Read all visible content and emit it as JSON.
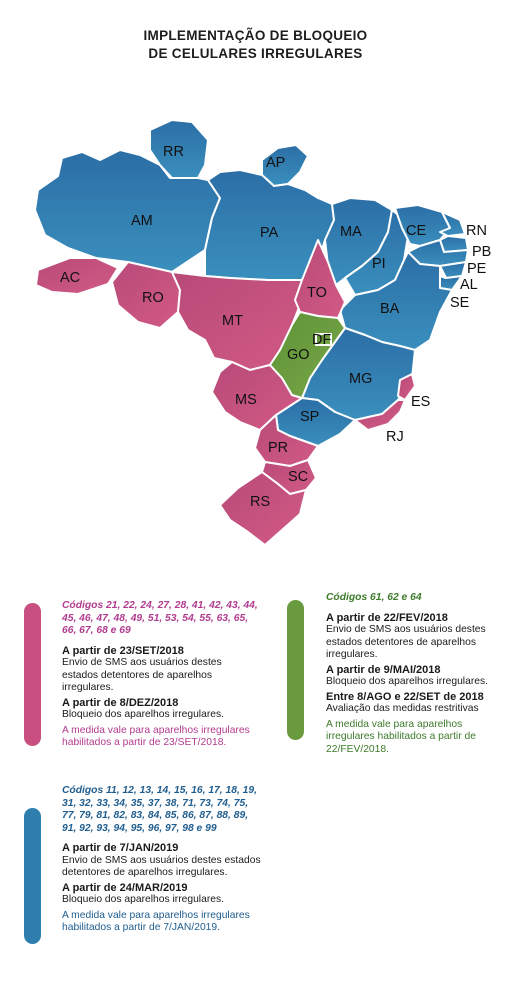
{
  "title": {
    "line1": "IMPLEMENTAÇÃO DE BLOQUEIO",
    "line2": "DE CELULARES IRREGULARES"
  },
  "colors": {
    "pink": "#c84f7f",
    "green": "#6a9a3e",
    "blue": "#2e7fb0",
    "pink_text": "#b13b8f",
    "green_text": "#3d7a2a",
    "blue_text": "#1f5d8f"
  },
  "states": {
    "RR": "RR",
    "AP": "AP",
    "AM": "AM",
    "PA": "PA",
    "MA": "MA",
    "CE": "CE",
    "RN": "RN",
    "PB": "PB",
    "PE": "PE",
    "AL": "AL",
    "SE": "SE",
    "PI": "PI",
    "AC": "AC",
    "RO": "RO",
    "TO": "TO",
    "BA": "BA",
    "MT": "MT",
    "DF": "DF",
    "GO": "GO",
    "MG": "MG",
    "ES": "ES",
    "MS": "MS",
    "SP": "SP",
    "RJ": "RJ",
    "PR": "PR",
    "SC": "SC",
    "RS": "RS"
  },
  "groups": {
    "pink": {
      "codes": "Códigos 21, 22, 24, 27, 28, 41, 42, 43, 44, 45, 46, 47, 48, 49, 51, 53, 54, 55, 63, 65, 66, 67, 68 e 69",
      "h1": "A partir de 23/SET/2018",
      "p1": "Envio de SMS aos usuários destes estados detentores de aparelhos irregulares.",
      "h2": "A partir de 8/DEZ/2018",
      "p2": "Bloqueio dos aparelhos irregulares.",
      "note": "A medida vale para aparelhos irregulares habilitados a partir de 23/SET/2018."
    },
    "green": {
      "codes": "Códigos 61, 62 e 64",
      "h1": "A partir de 22/FEV/2018",
      "p1": "Envio de SMS aos usuários destes estados detentores de aparelhos irregulares.",
      "h2": "A partir de 9/MAI/2018",
      "p2": "Bloqueio dos aparelhos irregulares.",
      "h3": "Entre 8/AGO e 22/SET de 2018",
      "p3": "Avaliação das medidas restritivas",
      "note": "A medida vale para aparelhos irregulares habilitados a partir de 22/FEV/2018."
    },
    "blue": {
      "codes": "Códigos 11, 12, 13, 14, 15, 16, 17, 18, 19, 31, 32, 33, 34, 35, 37, 38, 71, 73, 74, 75, 77, 79, 81, 82, 83, 84, 85, 86, 87, 88, 89, 91, 92, 93, 94, 95, 96, 97, 98 e 99",
      "h1": "A partir de 7/JAN/2019",
      "p1": "Envio de SMS aos usuários destes estados detentores de aparelhos irregulares.",
      "h2": "A partir de 24/MAR/2019",
      "p2": "Bloqueio dos aparelhos irregulares.",
      "note": "A medida vale para aparelhos irregulares habilitados a partir de 7/JAN/2019."
    }
  }
}
